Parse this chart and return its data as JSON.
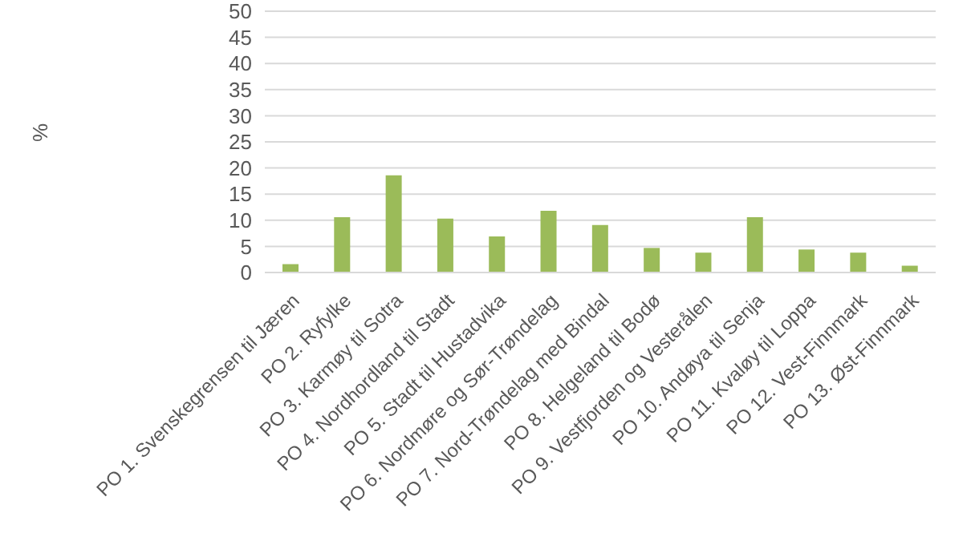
{
  "chart_data": {
    "type": "bar",
    "ylabel": "%",
    "categories": [
      "PO 1. Svenskegrensen til Jæren",
      "PO 2. Ryfylke",
      "PO 3. Karmøy til Sotra",
      "PO 4. Nordhordland til Stadt",
      "PO 5. Stadt til Hustadvika",
      "PO 6. Nordmøre og Sør-Trøndelag",
      "PO 7. Nord-Trøndelag med Bindal",
      "PO 8. Helgeland til Bodø",
      "PO 9. Vestfjorden og Vesterålen",
      "PO 10. Andøya til Senja",
      "PO 11. Kvaløy til Loppa",
      "PO 12. Vest-Finnmark",
      "PO 13. Øst-Finnmark"
    ],
    "values": [
      1.6,
      10.6,
      18.6,
      10.3,
      6.9,
      11.8,
      9.1,
      4.7,
      3.8,
      10.6,
      4.4,
      3.8,
      1.3
    ],
    "color": "#9bbb59",
    "ylim": [
      0,
      50
    ],
    "yticks": [
      0,
      5,
      10,
      15,
      20,
      25,
      30,
      35,
      40,
      45,
      50
    ],
    "grid": "y",
    "legend": false
  }
}
